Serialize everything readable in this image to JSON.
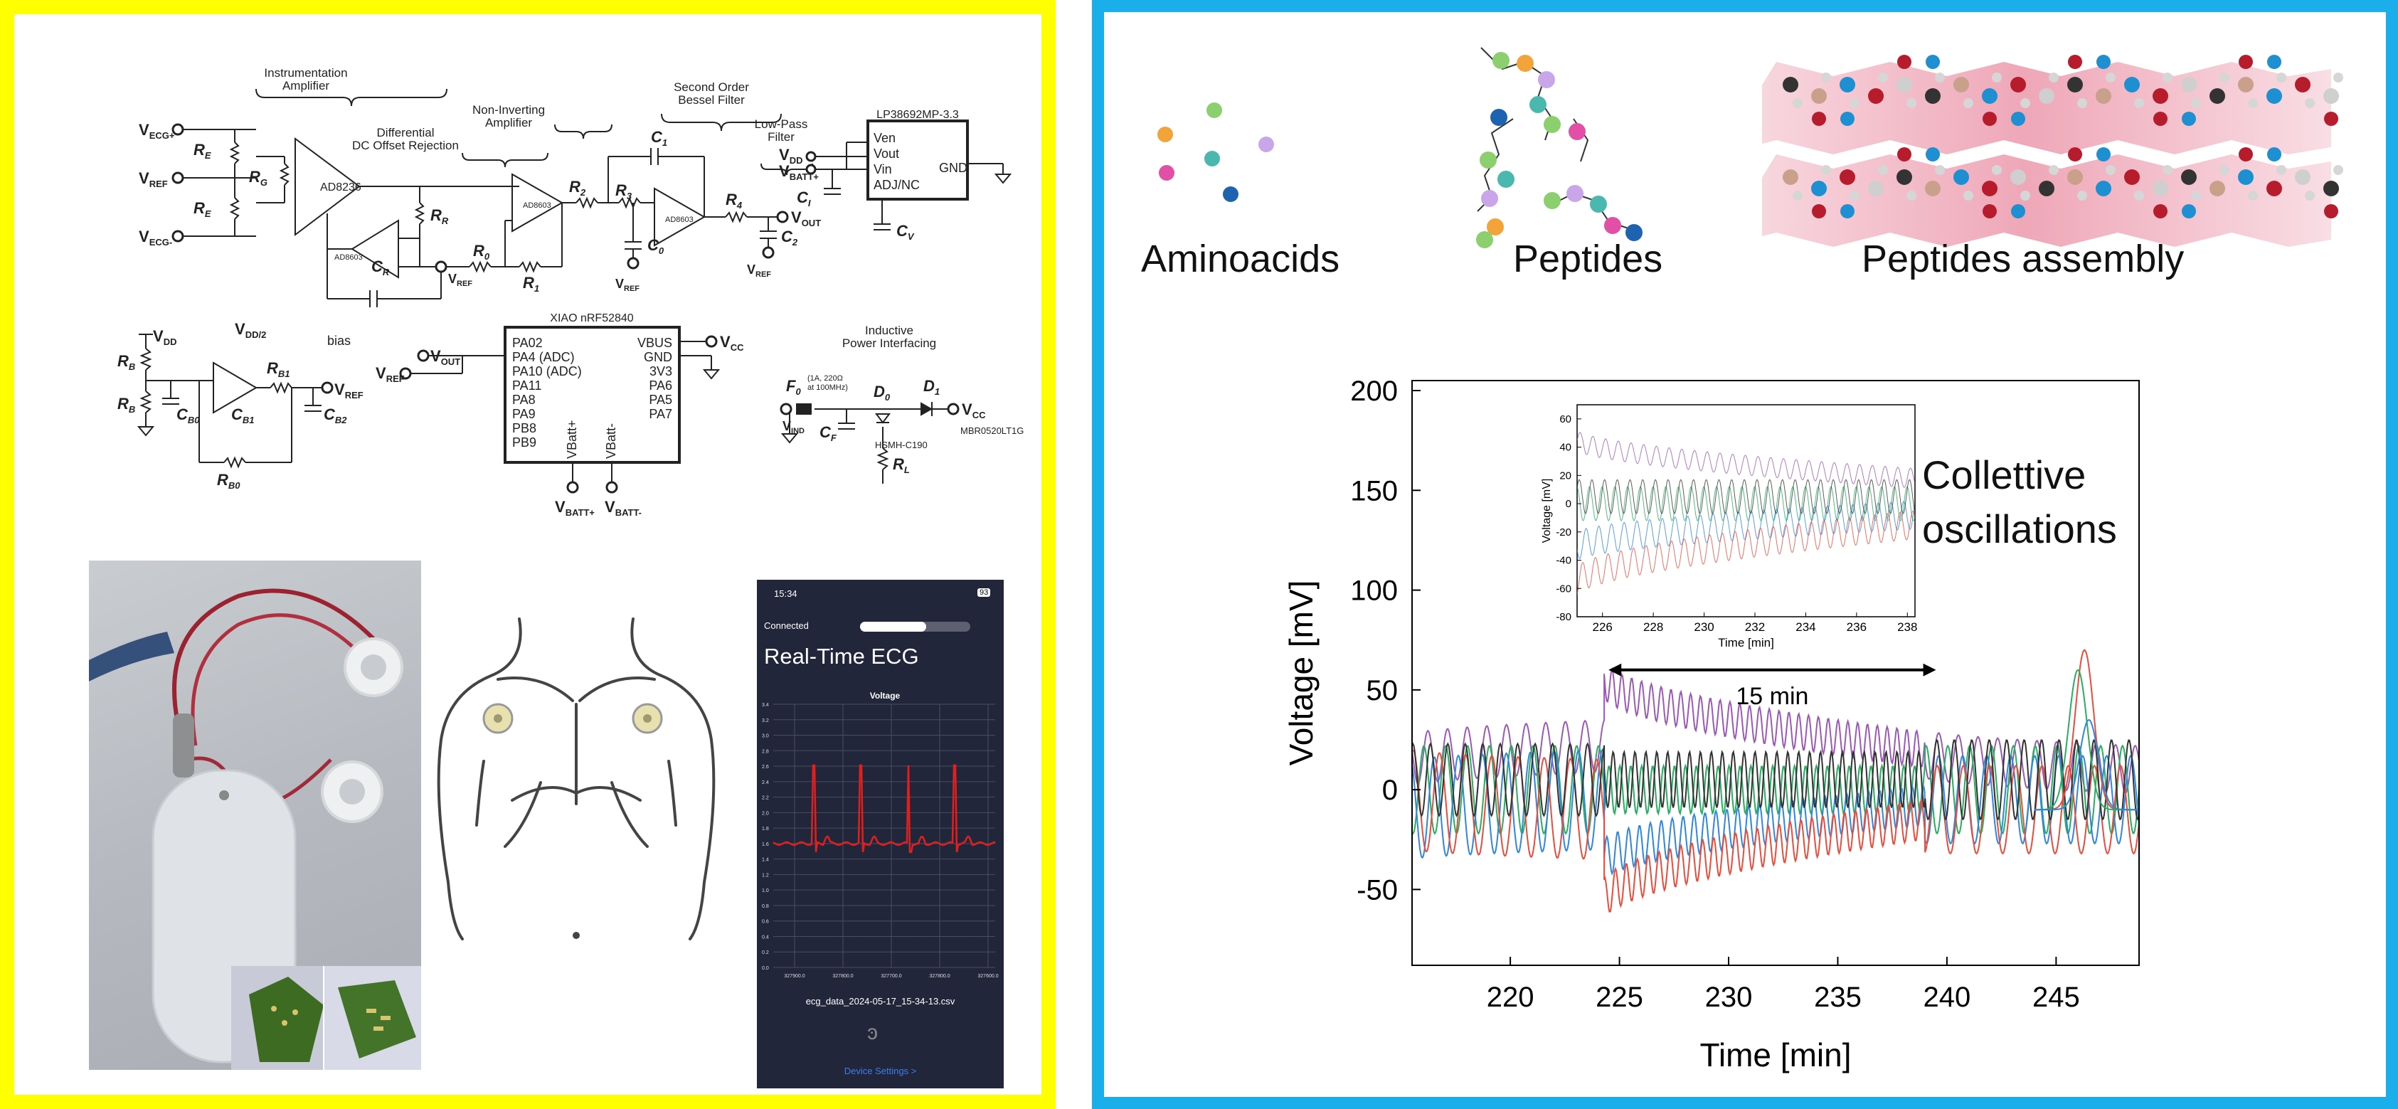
{
  "schematic": {
    "blocks": {
      "inamp": "Instrumentation\nAmplifier",
      "dc_offset": "Differential\nDC Offset Rejection",
      "noninv": "Non-Inverting\nAmplifier",
      "bessel": "Second Order\nBessel Filter",
      "lowpass": "Low-Pass\nFilter",
      "bias": "bias",
      "inductive": "Inductive\nPower Interfacing"
    },
    "ics": {
      "ad8236": "AD8236",
      "ad8603_a": "AD8603",
      "ad8603_b": "AD8603",
      "ad8603_c": "AD8603",
      "ldo": "LP38692MP-3.3",
      "mcu": "XIAO nRF52840",
      "diode": "MBR0520LT1G",
      "led": "HSMH-C190"
    },
    "ldo_pins": [
      "Ven",
      "Vout",
      "Vin",
      "ADJ/NC"
    ],
    "ldo_gnd": "GND",
    "mcu_left_pins": [
      "PA02",
      "PA4 (ADC)",
      "PA10 (ADC)",
      "PA11",
      "PA8",
      "PA9",
      "PB8",
      "PB9"
    ],
    "mcu_right_pins": [
      "VBUS",
      "GND",
      "3V3",
      "PA6",
      "PA5",
      "PA7"
    ],
    "mcu_bottom_pins": [
      "VBatt+",
      "VBatt-"
    ],
    "nets": {
      "vecg_p": "V",
      "vecg_p_sub": "ECG+",
      "vref": "V",
      "vref_sub": "REF",
      "vecg_m": "V",
      "vecg_m_sub": "ECG-",
      "vdd": "V",
      "vdd_sub": "DD",
      "vout": "V",
      "vout_sub": "OUT",
      "vcc": "V",
      "vcc_sub": "CC",
      "vind": "V",
      "vind_sub": "IND",
      "vbatt_p": "V",
      "vbatt_p_sub": "BATT+",
      "vbatt_m": "V",
      "vbatt_m_sub": "BATT-",
      "vdd2": "V",
      "vdd2_sub": "DD/2"
    },
    "components": {
      "re1": "R",
      "re1_sub": "E",
      "rg": "R",
      "rg_sub": "G",
      "re2": "R",
      "re2_sub": "E",
      "rr": "R",
      "rr_sub": "R",
      "cr": "C",
      "cr_sub": "R",
      "r0": "R",
      "r0_sub": "0",
      "r1": "R",
      "r1_sub": "1",
      "r2": "R",
      "r2_sub": "2",
      "r3": "R",
      "r3_sub": "3",
      "c1": "C",
      "c1_sub": "1",
      "c0": "C",
      "c0_sub": "0",
      "r4": "R",
      "r4_sub": "4",
      "c2": "C",
      "c2_sub": "2",
      "ci": "C",
      "ci_sub": "I",
      "cv": "C",
      "cv_sub": "V",
      "rb1": "R",
      "rb1_sub": "B",
      "rb2": "R",
      "rb2_sub": "B",
      "cb0": "C",
      "cb0_sub": "B0",
      "cb1": "C",
      "cb1_sub": "B1",
      "rb1b": "R",
      "rb1b_sub": "B1",
      "cb2": "C",
      "cb2_sub": "B2",
      "rb0": "R",
      "rb0_sub": "B0",
      "f0": "F",
      "f0_sub": "0",
      "f0_spec": "(1A, 220Ω\nat 100MHz)",
      "cf": "C",
      "cf_sub": "F",
      "d0": "D",
      "d0_sub": "0",
      "d1": "D",
      "d1_sub": "1",
      "rl": "R",
      "rl_sub": "L"
    }
  },
  "phone": {
    "time": "15:34",
    "battery": "93",
    "connected": "Connected",
    "title": "Real-Time ECG",
    "chart_title": "Voltage",
    "y_ticks": [
      "3.4",
      "3.2",
      "3.0",
      "2.8",
      "2.6",
      "2.4",
      "2.2",
      "2.0",
      "1.8",
      "1.6",
      "1.4",
      "1.2",
      "1.0",
      "0.8",
      "0.6",
      "0.4",
      "0.2",
      "0.0"
    ],
    "x_ticks": [
      "327900.0",
      "327800.0",
      "327700.0",
      "327800.0",
      "327600.0"
    ],
    "file": "ecg_data_2024-05-17_15-34-13.csv",
    "settings": "Device Settings >"
  },
  "illustration": {
    "aminoacids": "Aminoacids",
    "peptides": "Peptides",
    "assembly": "Peptides assembly"
  },
  "chart_data": [
    {
      "type": "line",
      "name": "main",
      "xlabel": "Time [min]",
      "ylabel": "Voltage [mV]",
      "xlim": [
        215.5,
        248.8
      ],
      "ylim": [
        -88,
        205
      ],
      "x_ticks": [
        220,
        225,
        230,
        235,
        240,
        245
      ],
      "y_ticks": [
        -50,
        0,
        50,
        100,
        150,
        200
      ],
      "annotation": "Collettive\noscillations",
      "span_label": "15 min",
      "span": [
        224.5,
        239.5
      ],
      "series": [
        {
          "color": "#9b59b6",
          "segments": [
            [
              215.5,
              15,
              224.3,
              22,
              13,
              0.9
            ],
            [
              224.3,
              55,
              239,
              20,
              9,
              0.45
            ],
            [
              239,
              18,
              248.8,
              10,
              12,
              0.9
            ]
          ]
        },
        {
          "color": "#27ae60",
          "segments": [
            [
              215.5,
              0,
              224.3,
              0,
              22,
              1.0
            ],
            [
              224.3,
              0,
              239,
              0,
              12,
              0.5
            ],
            [
              239,
              0,
              248.8,
              0,
              22,
              1.0
            ]
          ]
        },
        {
          "color": "#2e86de",
          "segments": [
            [
              215.5,
              -10,
              224.3,
              -5,
              25,
              1.1
            ],
            [
              224.3,
              -35,
              239,
              -8,
              10,
              0.5
            ],
            [
              239,
              -5,
              248.8,
              -5,
              22,
              1.1
            ]
          ]
        },
        {
          "color": "#e74c3c",
          "segments": [
            [
              215.5,
              -5,
              224.3,
              -10,
              25,
              1.2
            ],
            [
              224.3,
              -55,
              239,
              -15,
              10,
              0.5
            ],
            [
              239,
              -10,
              248.8,
              -10,
              22,
              1.2
            ]
          ]
        },
        {
          "color": "#333333",
          "segments": [
            [
              215.5,
              5,
              224.3,
              5,
              18,
              0.8
            ],
            [
              224.3,
              5,
              239,
              5,
              14,
              0.5
            ],
            [
              239,
              5,
              248.8,
              5,
              20,
              0.8
            ]
          ]
        }
      ]
    },
    {
      "type": "line",
      "name": "inset",
      "xlabel": "Time [min]",
      "ylabel": "Voltage [mV]",
      "xlim": [
        225,
        238.3
      ],
      "ylim": [
        -80,
        70
      ],
      "x_ticks": [
        226,
        228,
        230,
        232,
        234,
        236,
        238
      ],
      "y_ticks": [
        -80,
        -60,
        -40,
        -20,
        0,
        20,
        40,
        60
      ],
      "series": [
        {
          "color": "#9b59b6",
          "start": 45,
          "end": 18,
          "amp": 7
        },
        {
          "color": "#27ae60",
          "start": 0,
          "end": 0,
          "amp": 12
        },
        {
          "color": "#2e86de",
          "start": -30,
          "end": -8,
          "amp": 10
        },
        {
          "color": "#e74c3c",
          "start": -55,
          "end": -15,
          "amp": 10
        },
        {
          "color": "#333333",
          "start": 5,
          "end": 5,
          "amp": 12
        }
      ]
    }
  ]
}
